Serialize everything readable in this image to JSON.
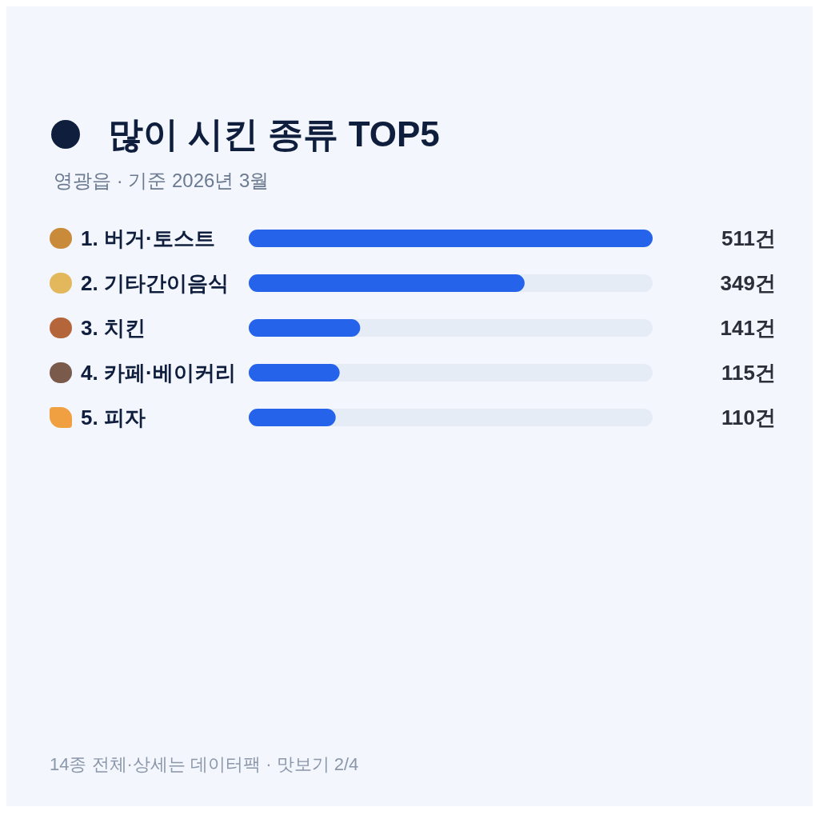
{
  "chart_data": {
    "type": "bar",
    "orientation": "horizontal",
    "title": "많이 시킨 종류 TOP5",
    "subtitle": "영광읍 · 기준 2026년 3월",
    "categories": [
      "1. 버거·토스트",
      "2. 기타간이음식",
      "3. 치킨",
      "4. 카페·베이커리",
      "5. 피자"
    ],
    "values": [
      511,
      349,
      141,
      115,
      110
    ],
    "value_labels": [
      "511건",
      "349건",
      "141건",
      "115건",
      "110건"
    ],
    "color": "#2563eb",
    "xlim": [
      0,
      511
    ],
    "tick_labels": "y",
    "annotations": [
      "14종 전체·상세는 데이터팩 · 맛보기 2/4"
    ]
  }
}
